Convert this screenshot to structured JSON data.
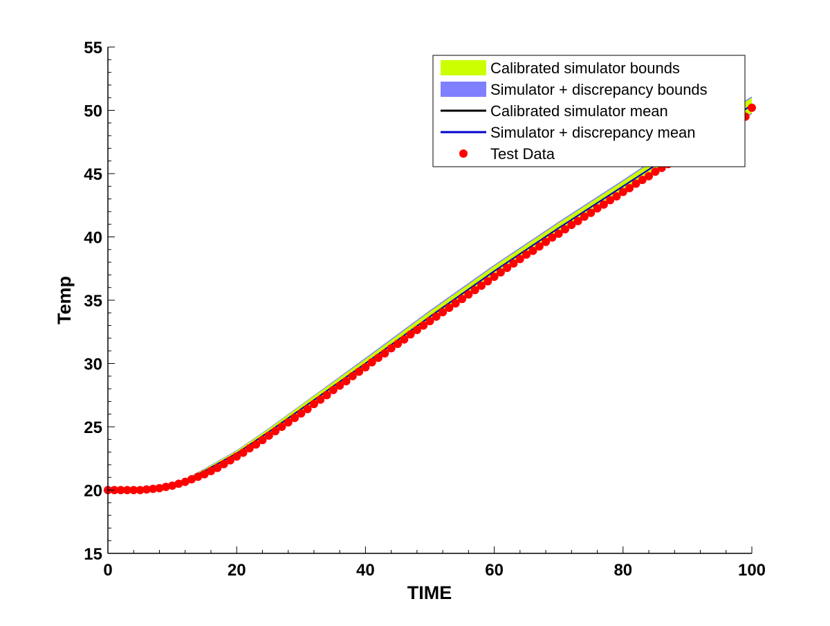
{
  "chart_data": {
    "type": "line",
    "title": "",
    "xlabel": "TIME",
    "ylabel": "Temp",
    "xlim": [
      0,
      100
    ],
    "ylim": [
      15,
      55
    ],
    "xticks": [
      0,
      20,
      40,
      60,
      80,
      100
    ],
    "yticks": [
      15,
      20,
      25,
      30,
      35,
      40,
      45,
      50,
      55
    ],
    "x_minor_step": 4,
    "y_minor_step": 1,
    "grid": false,
    "legend_position": "top-right",
    "colors": {
      "calibrated_bounds": "#ccff00",
      "discrepancy_bounds": "#7f7fff",
      "calibrated_mean": "#000000",
      "discrepancy_mean": "#0000cc",
      "test_data": "#ff0000"
    },
    "legend": [
      {
        "label": "Calibrated simulator bounds",
        "kind": "band",
        "color": "#ccff00"
      },
      {
        "label": "Simulator + discrepancy bounds",
        "kind": "band",
        "color": "#7f7fff"
      },
      {
        "label": "Calibrated simulator mean",
        "kind": "line",
        "color": "#000000"
      },
      {
        "label": "Simulator + discrepancy mean",
        "kind": "line",
        "color": "#0000cc"
      },
      {
        "label": "Test Data",
        "kind": "marker",
        "color": "#ff0000"
      }
    ],
    "series": [
      {
        "name": "Calibrated simulator mean",
        "x": [
          0,
          5,
          8,
          10,
          12,
          15,
          20,
          25,
          30,
          40,
          50,
          60,
          70,
          80,
          90,
          100
        ],
        "y": [
          20.0,
          20.05,
          20.2,
          20.4,
          20.75,
          21.5,
          22.9,
          24.6,
          26.4,
          30.0,
          33.7,
          37.3,
          40.7,
          44.0,
          47.3,
          50.4
        ]
      },
      {
        "name": "Simulator + discrepancy mean",
        "x": [
          0,
          5,
          8,
          10,
          12,
          15,
          20,
          25,
          30,
          40,
          50,
          60,
          70,
          80,
          90,
          100
        ],
        "y": [
          20.0,
          20.05,
          20.2,
          20.4,
          20.75,
          21.5,
          22.9,
          24.6,
          26.4,
          30.0,
          33.7,
          37.3,
          40.7,
          44.0,
          47.3,
          50.4
        ]
      },
      {
        "name": "Calibrated simulator bounds",
        "x": [
          0,
          5,
          8,
          10,
          12,
          15,
          20,
          25,
          30,
          40,
          50,
          60,
          70,
          80,
          90,
          100
        ],
        "lower": [
          19.95,
          20.0,
          20.15,
          20.35,
          20.65,
          21.35,
          22.7,
          24.35,
          26.1,
          29.65,
          33.3,
          36.9,
          40.3,
          43.6,
          46.8,
          49.8
        ],
        "upper": [
          20.05,
          20.1,
          20.25,
          20.5,
          20.85,
          21.65,
          23.1,
          24.85,
          26.7,
          30.35,
          34.1,
          37.7,
          41.1,
          44.4,
          47.8,
          51.0
        ]
      },
      {
        "name": "Simulator + discrepancy bounds",
        "x": [
          0,
          5,
          8,
          10,
          12,
          15,
          20,
          25,
          30,
          40,
          50,
          60,
          70,
          80,
          90,
          100
        ],
        "lower": [
          19.93,
          19.98,
          20.13,
          20.32,
          20.62,
          21.3,
          22.65,
          24.3,
          26.05,
          29.55,
          33.2,
          36.8,
          40.2,
          43.5,
          46.7,
          49.7
        ],
        "upper": [
          20.07,
          20.12,
          20.27,
          20.52,
          20.88,
          21.7,
          23.15,
          24.9,
          26.75,
          30.45,
          34.2,
          37.8,
          41.2,
          44.5,
          47.9,
          51.1
        ]
      },
      {
        "name": "Test Data",
        "x": [
          0,
          1,
          2,
          3,
          4,
          5,
          6,
          7,
          8,
          9,
          10,
          11,
          12,
          13,
          14,
          15,
          16,
          17,
          18,
          19,
          20,
          21,
          22,
          23,
          24,
          25,
          26,
          27,
          28,
          29,
          30,
          31,
          32,
          33,
          34,
          35,
          36,
          37,
          38,
          39,
          40,
          41,
          42,
          43,
          44,
          45,
          46,
          47,
          48,
          49,
          50,
          51,
          52,
          53,
          54,
          55,
          56,
          57,
          58,
          59,
          60,
          61,
          62,
          63,
          64,
          65,
          66,
          67,
          68,
          69,
          70,
          71,
          72,
          73,
          74,
          75,
          76,
          77,
          78,
          79,
          80,
          81,
          82,
          83,
          84,
          85,
          86,
          87,
          88,
          89,
          90,
          91,
          92,
          93,
          94,
          95,
          96,
          97,
          98,
          99,
          100
        ],
        "y": [
          20.0,
          20.0,
          20.0,
          20.0,
          20.0,
          20.0,
          20.05,
          20.1,
          20.15,
          20.25,
          20.35,
          20.5,
          20.65,
          20.85,
          21.05,
          21.25,
          21.5,
          21.75,
          22.05,
          22.35,
          22.65,
          22.95,
          23.3,
          23.6,
          23.95,
          24.3,
          24.65,
          25.0,
          25.35,
          25.7,
          26.05,
          26.4,
          26.8,
          27.15,
          27.5,
          27.9,
          28.25,
          28.6,
          29.0,
          29.35,
          29.7,
          30.1,
          30.45,
          30.8,
          31.2,
          31.55,
          31.9,
          32.3,
          32.65,
          33.0,
          33.35,
          33.7,
          34.05,
          34.4,
          34.75,
          35.1,
          35.45,
          35.8,
          36.15,
          36.5,
          36.85,
          37.2,
          37.55,
          37.9,
          38.25,
          38.6,
          38.9,
          39.25,
          39.6,
          39.95,
          40.25,
          40.6,
          40.95,
          41.25,
          41.6,
          41.9,
          42.25,
          42.55,
          42.9,
          43.2,
          43.55,
          43.85,
          44.2,
          44.5,
          44.8,
          45.15,
          45.45,
          45.75,
          46.1,
          46.4,
          46.7,
          47.0,
          47.35,
          47.65,
          47.95,
          48.25,
          48.55,
          48.85,
          49.15,
          49.5,
          50.2
        ]
      }
    ]
  }
}
